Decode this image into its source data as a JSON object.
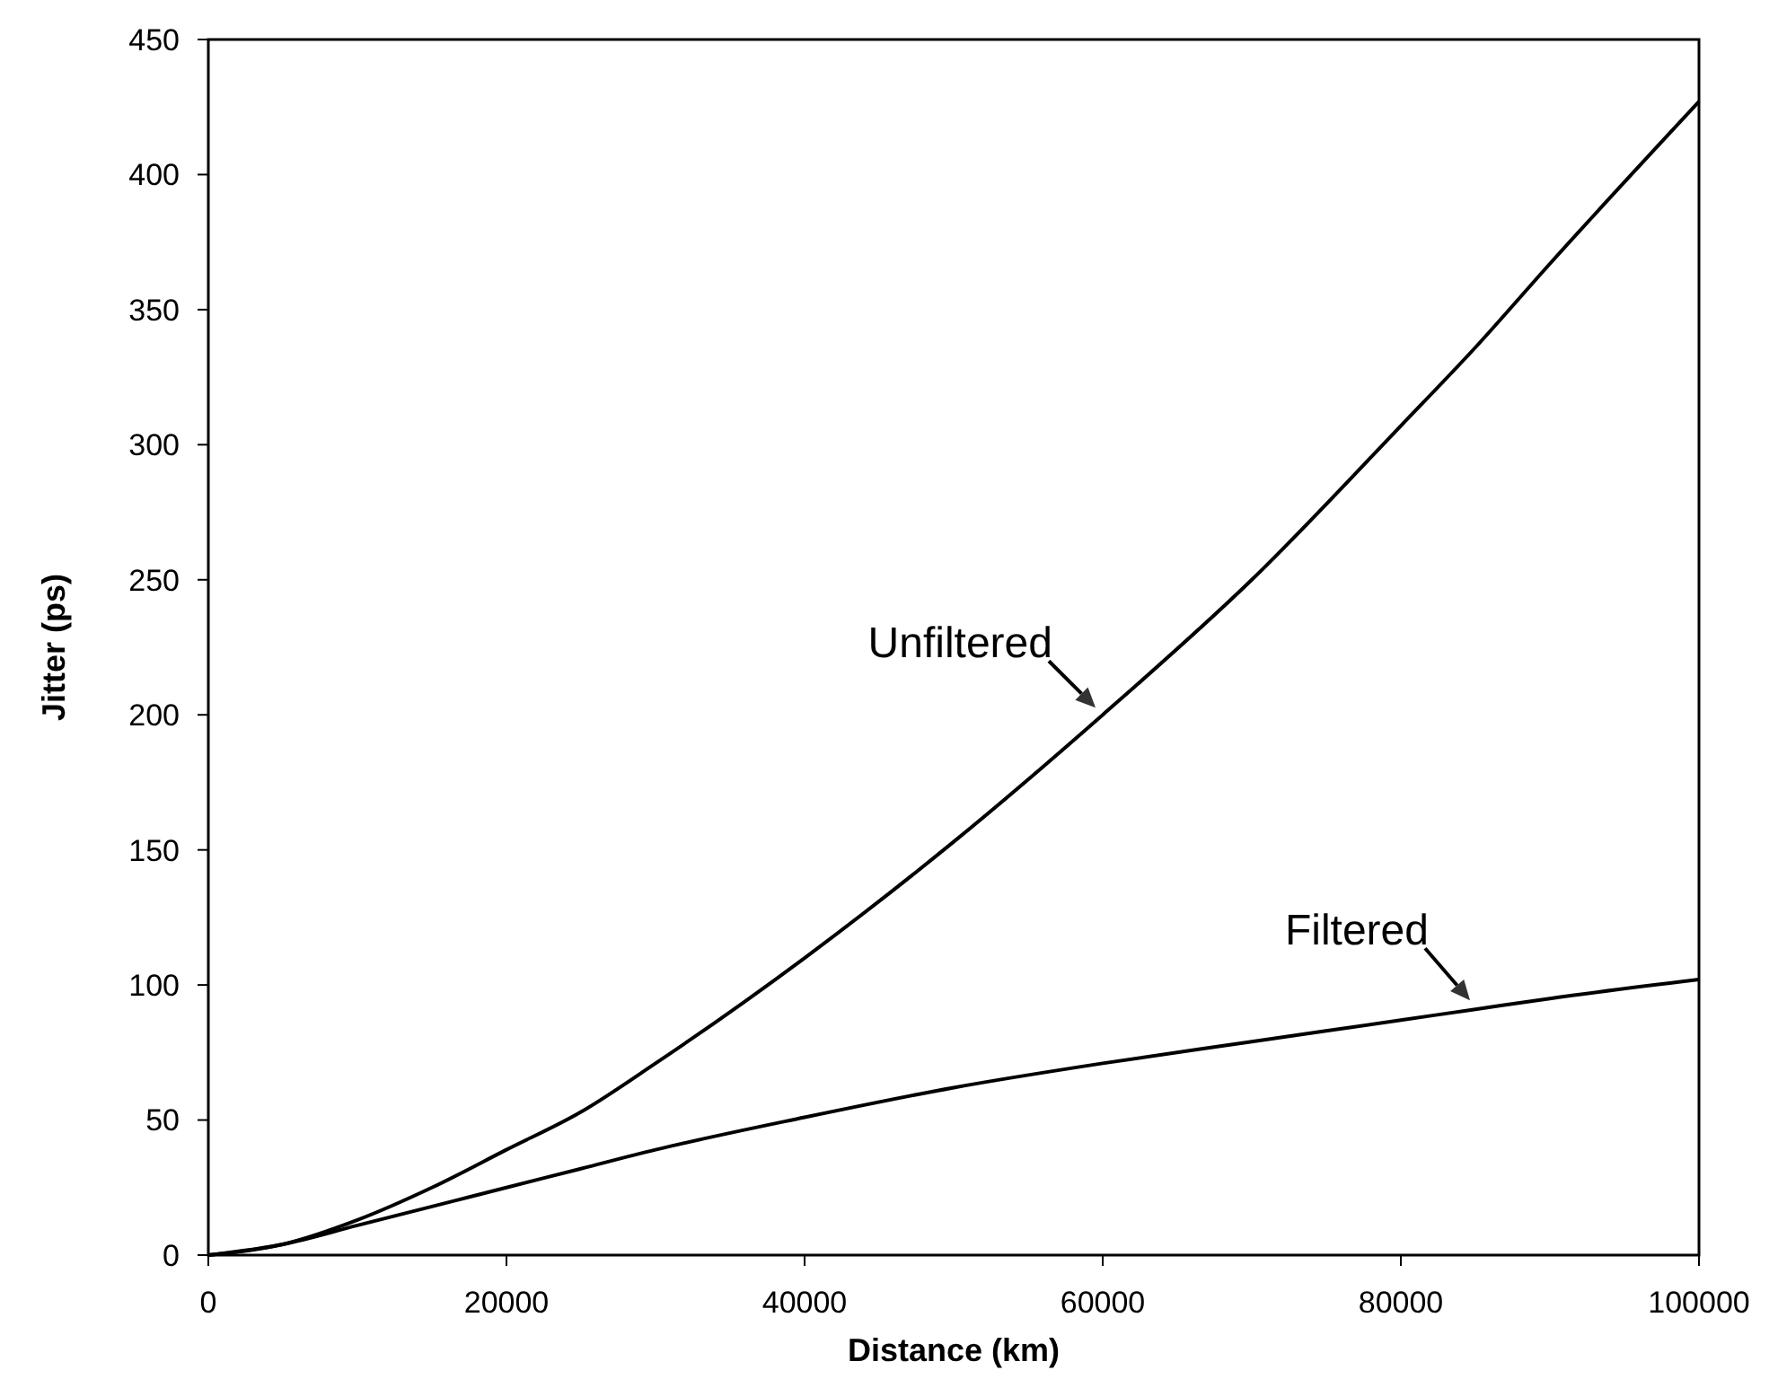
{
  "chart_data": {
    "type": "line",
    "xlabel": "Distance (km)",
    "ylabel": "Jitter (ps)",
    "x": [
      0,
      5000,
      10000,
      15000,
      20000,
      25000,
      30000,
      40000,
      50000,
      60000,
      70000,
      80000,
      85000,
      90000,
      100000
    ],
    "series": [
      {
        "name": "Unfiltered",
        "color": "#000000",
        "values": [
          0,
          4,
          13,
          25,
          39,
          53,
          71,
          110,
          153,
          200,
          250,
          307,
          336,
          367,
          427
        ]
      },
      {
        "name": "Filtered",
        "color": "#000000",
        "values": [
          0,
          4,
          11,
          18,
          25,
          32,
          39,
          51,
          62,
          71,
          79,
          87,
          91,
          95,
          102
        ]
      }
    ],
    "xlim": [
      0,
      100000
    ],
    "xticks": [
      0,
      20000,
      40000,
      60000,
      80000,
      100000
    ],
    "ylim": [
      0,
      450
    ],
    "yticks": [
      0,
      50,
      100,
      150,
      200,
      250,
      300,
      350,
      400,
      450
    ],
    "grid": false,
    "marker": "none",
    "line_style": "solid"
  }
}
